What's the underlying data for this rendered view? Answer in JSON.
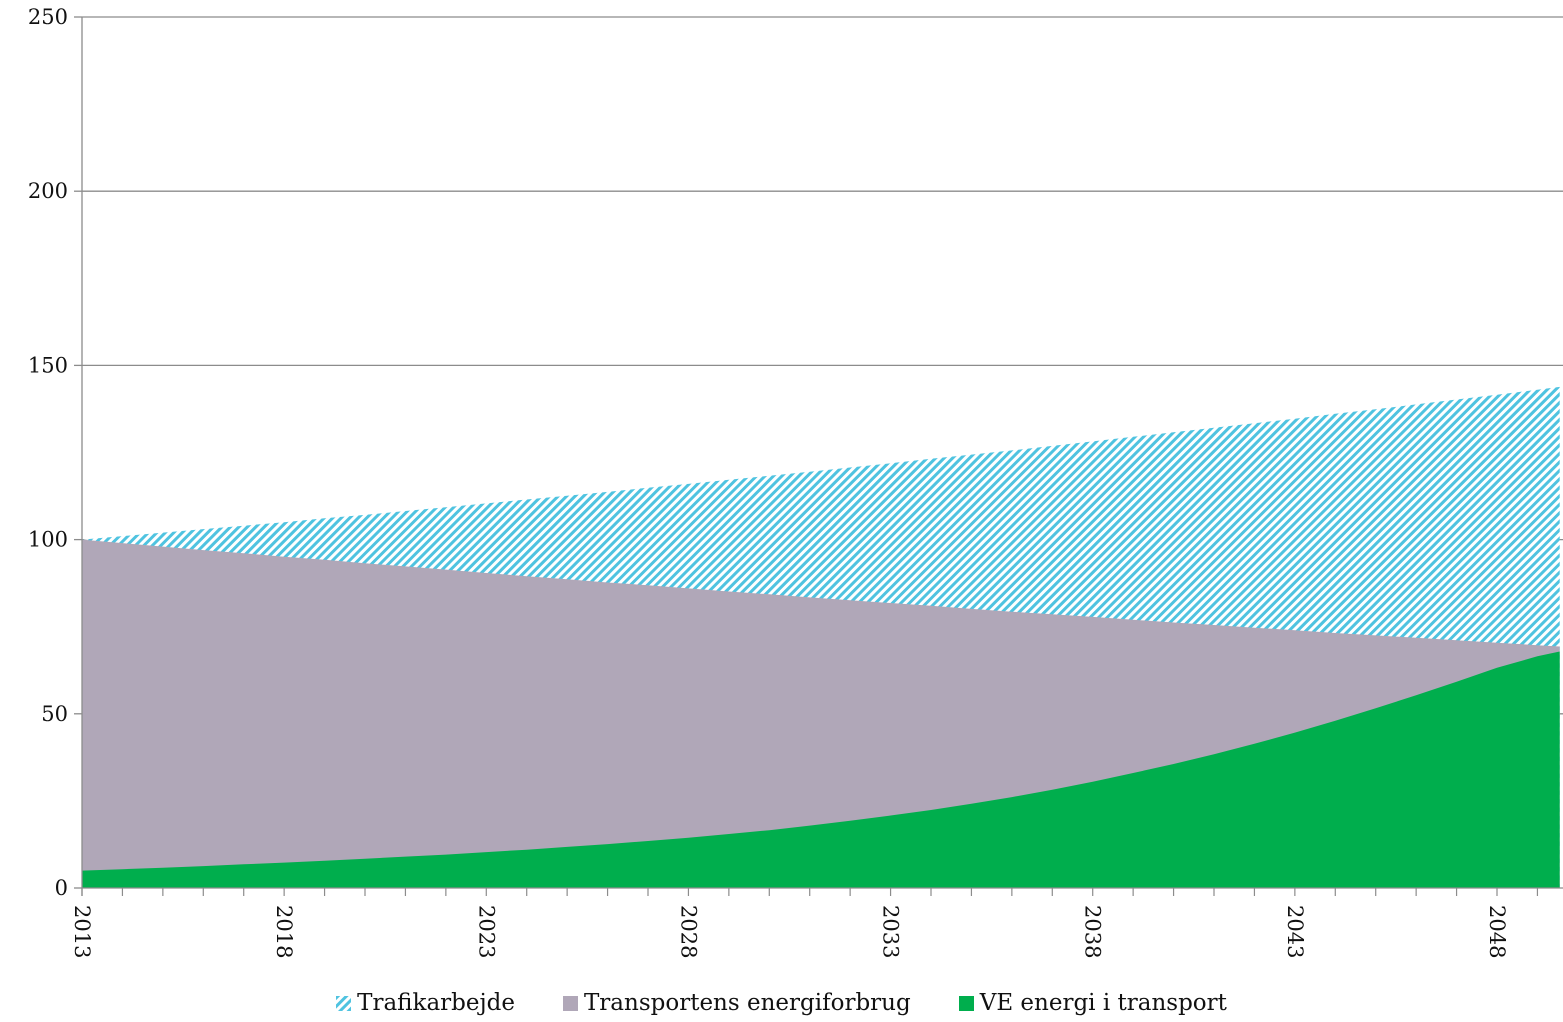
{
  "chart_data": {
    "type": "area",
    "stacked": false,
    "x": [
      2013,
      2014,
      2015,
      2016,
      2017,
      2018,
      2019,
      2020,
      2021,
      2022,
      2023,
      2024,
      2025,
      2026,
      2027,
      2028,
      2029,
      2030,
      2031,
      2032,
      2033,
      2034,
      2035,
      2036,
      2037,
      2038,
      2039,
      2040,
      2041,
      2042,
      2043,
      2044,
      2045,
      2046,
      2047,
      2048,
      2049,
      2050
    ],
    "x_tick_labels": [
      "2013",
      "2018",
      "2023",
      "2028",
      "2033",
      "2038",
      "2043",
      "2048"
    ],
    "y_tick_labels": [
      "0",
      "50",
      "100",
      "150",
      "200",
      "250"
    ],
    "ylim": [
      0,
      250
    ],
    "grid": true,
    "legend_position": "bottom",
    "series": [
      {
        "name": "Trafikarbejde",
        "color": "#4fc3e0",
        "pattern": "diagonal-hatch",
        "values": [
          100.0,
          101.0,
          102.0,
          103.0,
          104.0,
          105.0,
          106.1,
          107.1,
          108.2,
          109.3,
          110.4,
          111.5,
          112.6,
          113.7,
          114.9,
          116.0,
          117.2,
          118.3,
          119.5,
          120.7,
          121.9,
          123.2,
          124.4,
          125.6,
          126.9,
          128.2,
          129.5,
          130.8,
          132.1,
          133.4,
          134.7,
          136.1,
          137.4,
          138.8,
          140.2,
          141.6,
          143.0,
          144.5
        ]
      },
      {
        "name": "Transportens energiforbrug",
        "color": "#b0a7b8",
        "values": [
          100.0,
          99.0,
          98.0,
          97.0,
          96.1,
          95.1,
          94.2,
          93.2,
          92.3,
          91.4,
          90.4,
          89.5,
          88.6,
          87.7,
          86.9,
          86.0,
          85.1,
          84.3,
          83.4,
          82.6,
          81.8,
          81.0,
          80.1,
          79.3,
          78.6,
          77.8,
          77.0,
          76.2,
          75.5,
          74.7,
          74.0,
          73.2,
          72.5,
          71.8,
          71.1,
          70.4,
          69.7,
          69.0
        ]
      },
      {
        "name": "VE energi i transport",
        "color": "#00ae4d",
        "values": [
          5.0,
          5.4,
          5.8,
          6.3,
          6.8,
          7.3,
          7.8,
          8.4,
          9.0,
          9.6,
          10.3,
          11.0,
          11.8,
          12.6,
          13.5,
          14.4,
          15.5,
          16.6,
          17.9,
          19.3,
          20.8,
          22.4,
          24.2,
          26.1,
          28.2,
          30.5,
          33.0,
          35.6,
          38.4,
          41.4,
          44.6,
          48.0,
          51.6,
          55.3,
          59.2,
          63.2,
          66.5,
          69.0
        ]
      }
    ]
  }
}
